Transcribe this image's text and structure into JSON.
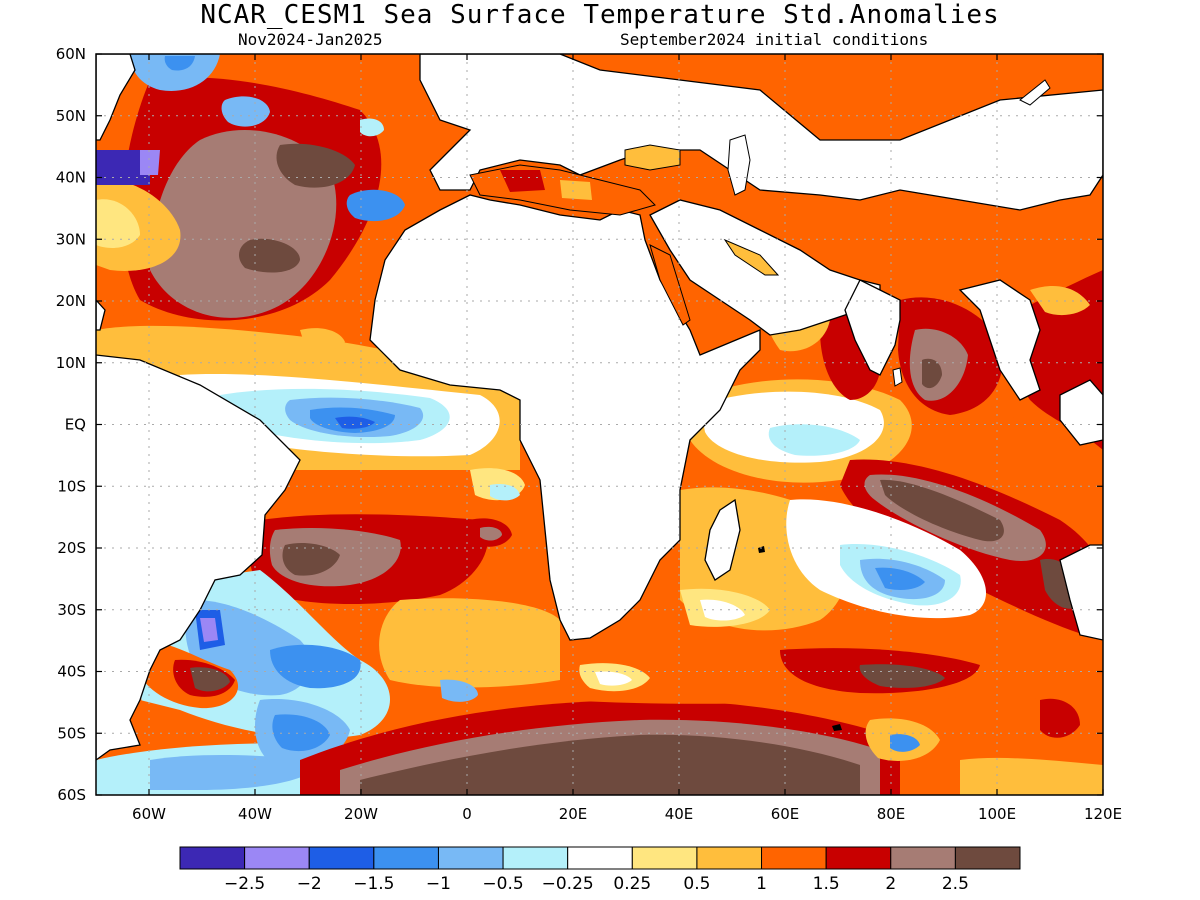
{
  "title": "NCAR_CESM1 Sea Surface Temperature Std.Anomalies",
  "subtitle_left": "Nov2024-Jan2025",
  "subtitle_right": "September2024 initial conditions",
  "lat_ticks": [
    "60N",
    "50N",
    "40N",
    "30N",
    "20N",
    "10N",
    "EQ",
    "10S",
    "20S",
    "30S",
    "40S",
    "50S",
    "60S"
  ],
  "lon_ticks": [
    "60W",
    "40W",
    "20W",
    "0",
    "20E",
    "40E",
    "60E",
    "80E",
    "100E",
    "120E"
  ],
  "colorbar": {
    "colors": [
      "#3c28b4",
      "#9b87f5",
      "#1e5ee6",
      "#3c91f0",
      "#78b9f5",
      "#b4f0fa",
      "#ffffff",
      "#ffe680",
      "#ffbe3c",
      "#ff6400",
      "#c80000",
      "#a67c74",
      "#6e4a3e"
    ],
    "labels": [
      "−2.5",
      "−2",
      "−1.5",
      "−1",
      "−0.5",
      "−0.25",
      "0.25",
      "0.5",
      "1",
      "1.5",
      "2",
      "2.5"
    ]
  },
  "map": {
    "lon_range": [
      -70,
      120
    ],
    "lat_range": [
      -60,
      60
    ],
    "land_color": "#ffffff",
    "grid": "dotted"
  }
}
